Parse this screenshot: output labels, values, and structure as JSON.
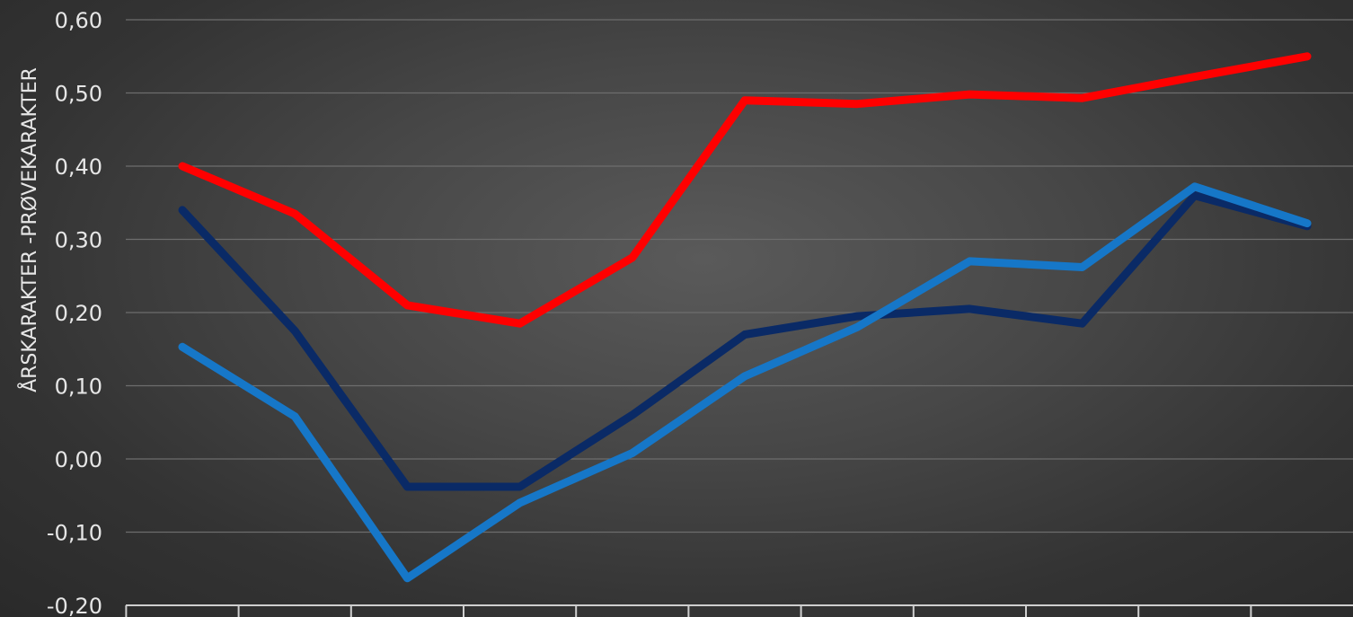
{
  "chart_data": {
    "type": "line",
    "title": "",
    "xlabel": "",
    "ylabel": "ÅRSKARAKTER -PRØVEKARAKTER",
    "ylim": [
      -0.2,
      0.6
    ],
    "yticks": [
      "0,60",
      "0,50",
      "0,40",
      "0,30",
      "0,20",
      "0,10",
      "0,00",
      "-0,10",
      "-0,20"
    ],
    "ytick_values": [
      0.6,
      0.5,
      0.4,
      0.3,
      0.2,
      0.1,
      0.0,
      -0.1,
      -0.2
    ],
    "grid": true,
    "legend": "none",
    "x": [
      1,
      2,
      3,
      4,
      5,
      6,
      7,
      8,
      9,
      10,
      11
    ],
    "series": [
      {
        "color": "#ff0000",
        "values": [
          0.4,
          0.335,
          0.21,
          0.185,
          0.275,
          0.49,
          0.485,
          0.498,
          0.493,
          0.522,
          0.55
        ]
      },
      {
        "color": "#0a2a66",
        "values": [
          0.34,
          0.175,
          -0.038,
          -0.038,
          0.06,
          0.17,
          0.195,
          0.205,
          0.185,
          0.36,
          0.318
        ]
      },
      {
        "color": "#1677c8",
        "values": [
          0.153,
          0.058,
          -0.163,
          -0.06,
          0.008,
          0.113,
          0.18,
          0.27,
          0.262,
          0.372,
          0.322
        ]
      }
    ]
  }
}
